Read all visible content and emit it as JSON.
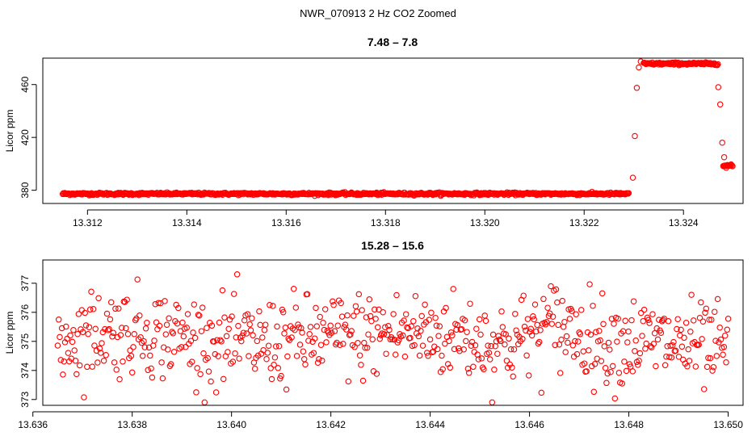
{
  "figure": {
    "title": "NWR_070913  2 Hz CO2 Zoomed"
  },
  "chart_data": [
    {
      "type": "scatter",
      "title": "7.48 – 7.8",
      "xlabel": "",
      "ylabel": "Licor ppm",
      "xlim": [
        13.3111,
        13.3252
      ],
      "ylim": [
        370,
        480
      ],
      "x_ticks": [
        13.312,
        13.314,
        13.316,
        13.318,
        13.32,
        13.322,
        13.324
      ],
      "x_tick_labels": [
        "13.312",
        "13.314",
        "13.316",
        "13.318",
        "13.320",
        "13.322",
        "13.324"
      ],
      "y_ticks": [
        380,
        420,
        460
      ],
      "y_tick_labels": [
        "380",
        "420",
        "460"
      ],
      "marker_color": "#ff0000",
      "segments": [
        {
          "x_start": 13.3115,
          "x_end": 13.3229,
          "y_level": 377.3,
          "noise": 0.9
        },
        {
          "x_start": 13.3232,
          "x_end": 13.3247,
          "y_level": 475.8,
          "noise": 0.9
        },
        {
          "x_start": 13.3248,
          "x_end": 13.325,
          "y_level": 398.6,
          "noise": 0.8
        }
      ],
      "transition_points": [
        {
          "x": 13.32298,
          "y": 389.5
        },
        {
          "x": 13.32302,
          "y": 421.0
        },
        {
          "x": 13.32306,
          "y": 457.5
        },
        {
          "x": 13.3231,
          "y": 473.0
        },
        {
          "x": 13.32314,
          "y": 477.5
        },
        {
          "x": 13.3247,
          "y": 458.0
        },
        {
          "x": 13.32474,
          "y": 445.0
        },
        {
          "x": 13.32478,
          "y": 416.0
        },
        {
          "x": 13.32482,
          "y": 405.0
        },
        {
          "x": 13.32486,
          "y": 397.0
        }
      ]
    },
    {
      "type": "scatter",
      "title": "15.28 – 15.6",
      "xlabel": "",
      "ylabel": "Licor ppm",
      "xlim": [
        13.6362,
        13.6503
      ],
      "ylim": [
        372.8,
        377.8
      ],
      "x_ticks": [
        13.636,
        13.638,
        13.64,
        13.642,
        13.644,
        13.646,
        13.648,
        13.65
      ],
      "x_tick_labels": [
        "13.636",
        "13.638",
        "13.640",
        "13.642",
        "13.644",
        "13.646",
        "13.648",
        "13.650"
      ],
      "y_ticks": [
        373,
        374,
        375,
        376,
        377
      ],
      "y_tick_labels": [
        "373",
        "374",
        "375",
        "376",
        "377"
      ],
      "marker_color": "#ff0000",
      "trend_knots_x": [
        13.6365,
        13.6375,
        13.6385,
        13.6395,
        13.6405,
        13.6415,
        13.6425,
        13.6435,
        13.6445,
        13.6455,
        13.6465,
        13.6475,
        13.6485,
        13.6495,
        13.65
      ],
      "trend_knots_y": [
        375.0,
        375.4,
        375.3,
        375.0,
        374.9,
        375.1,
        375.2,
        375.3,
        375.2,
        374.9,
        375.6,
        375.0,
        375.0,
        374.8,
        374.6
      ],
      "noise_sd": 0.75,
      "point_count": 640
    }
  ]
}
